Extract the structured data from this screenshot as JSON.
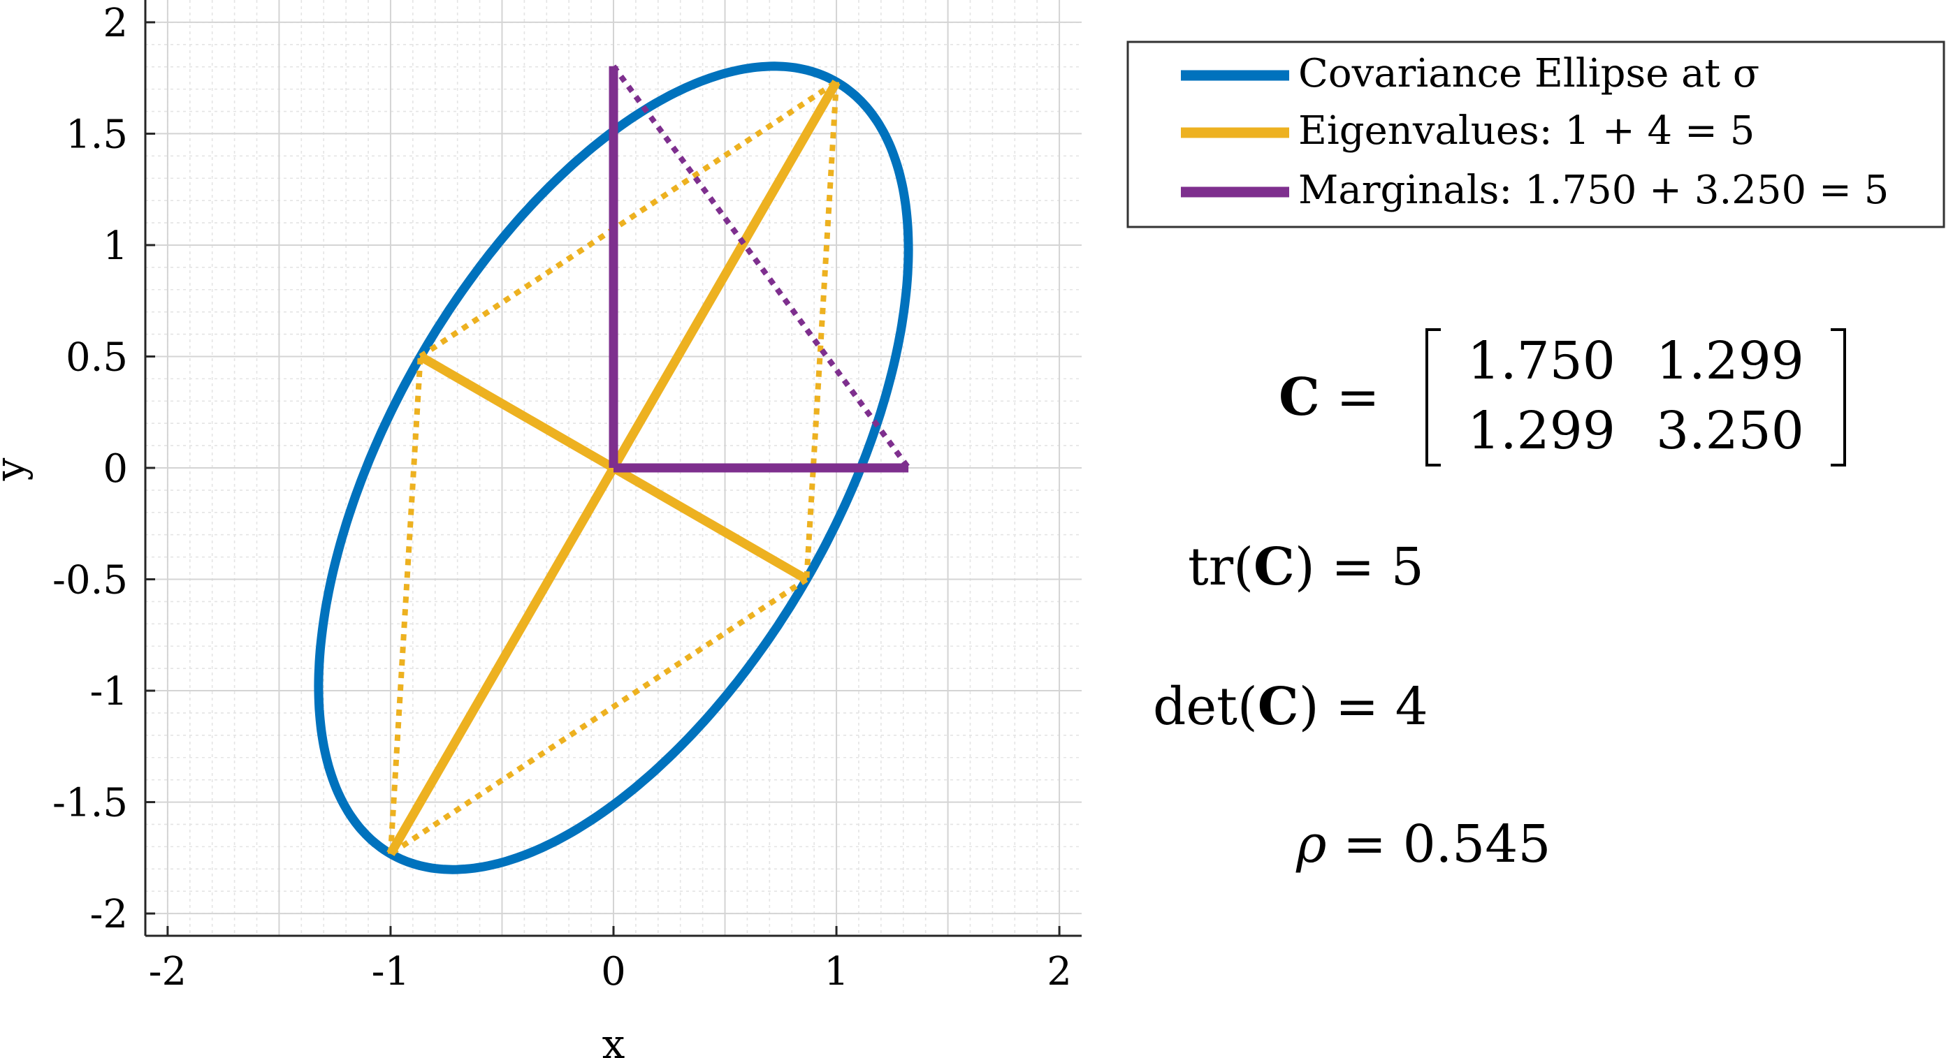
{
  "chart_data": {
    "type": "line",
    "xlabel": "x",
    "ylabel": "y",
    "xlim": [
      -2.1,
      2.1
    ],
    "ylim": [
      -2.1,
      2.1
    ],
    "x_ticks": [
      -2,
      -1,
      0,
      1,
      2
    ],
    "x_tick_labels": [
      "-2",
      "-1",
      "0",
      "1",
      "2"
    ],
    "y_ticks": [
      -2,
      -1.5,
      -1,
      -0.5,
      0,
      0.5,
      1,
      1.5,
      2
    ],
    "y_tick_labels": [
      "-2",
      "-1.5",
      "-1",
      "-0.5",
      "0",
      "0.5",
      "1",
      "1.5",
      "2"
    ],
    "grid": true,
    "minor_grid": true,
    "legend_position": "top-right",
    "covariance": [
      [
        1.75,
        1.299
      ],
      [
        1.299,
        3.25
      ]
    ],
    "series": [
      {
        "name": "Covariance Ellipse at σ",
        "color": "#0072BD",
        "kind": "ellipse",
        "center": [
          0,
          0
        ],
        "semi_axes": [
          2,
          1
        ],
        "major_axis_direction": [
          0.5,
          0.866
        ],
        "minor_axis_direction": [
          -0.866,
          0.5
        ]
      },
      {
        "name": "Eigenvalues: 1 + 4 = 5",
        "color": "#EDB120",
        "kind": "axes",
        "segments": [
          [
            [
              -1.0,
              -1.732
            ],
            [
              1.0,
              1.732
            ]
          ],
          [
            [
              0,
              0
            ],
            [
              -0.866,
              0.5
            ]
          ],
          [
            [
              0,
              0
            ],
            [
              0.866,
              -0.5
            ]
          ]
        ],
        "dotted_segments": [
          [
            [
              -0.866,
              0.5
            ],
            [
              1.0,
              1.732
            ]
          ],
          [
            [
              1.0,
              1.732
            ],
            [
              0.866,
              -0.5
            ]
          ],
          [
            [
              0.866,
              -0.5
            ],
            [
              -1.0,
              -1.732
            ]
          ],
          [
            [
              -1.0,
              -1.732
            ],
            [
              -0.866,
              0.5
            ]
          ]
        ]
      },
      {
        "name": "Marginals: 1.750 + 3.250 = 5",
        "color": "#7E2F8E",
        "kind": "axes",
        "segments": [
          [
            [
              0,
              0
            ],
            [
              0,
              1.803
            ]
          ],
          [
            [
              0,
              0
            ],
            [
              1.323,
              0
            ]
          ]
        ],
        "dotted_segments": [
          [
            [
              0,
              1.803
            ],
            [
              1.323,
              0
            ]
          ]
        ]
      }
    ]
  },
  "annotations": {
    "matrix": {
      "lhs": "C",
      "equals": "=",
      "cells": [
        [
          "1.750",
          "1.299"
        ],
        [
          "1.299",
          "3.250"
        ]
      ]
    },
    "trace": {
      "func": "tr(",
      "sym": "C",
      "rest": ") = 5"
    },
    "det": {
      "func": "det(",
      "sym": "C",
      "rest": ") = 4"
    },
    "rho": {
      "sym": "ρ",
      "rest": " = 0.545"
    }
  }
}
